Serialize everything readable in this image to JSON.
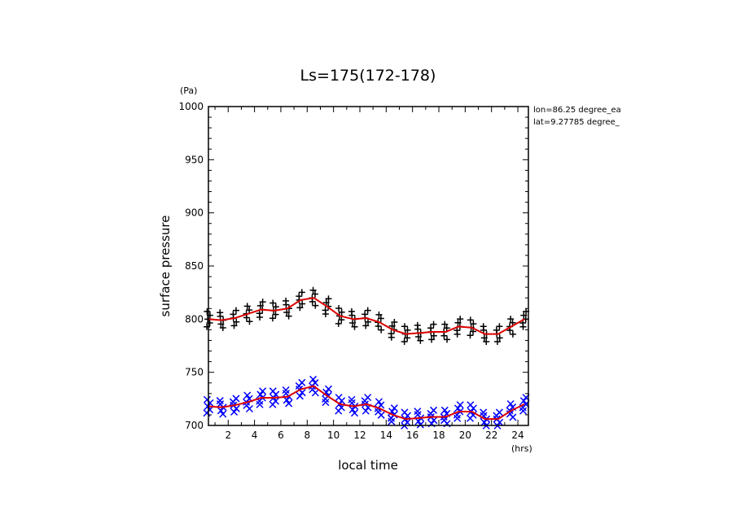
{
  "chart_data": {
    "type": "scatter",
    "title": "Ls=175(172-178)",
    "xlabel": "local time",
    "ylabel": "surface pressure",
    "x_unit": "(hrs)",
    "y_unit": "(Pa)",
    "xlim": [
      0.5,
      24.8
    ],
    "ylim": [
      700,
      1000
    ],
    "xticks": [
      2,
      4,
      6,
      8,
      10,
      12,
      14,
      16,
      18,
      20,
      22,
      24
    ],
    "yticks": [
      700,
      750,
      800,
      850,
      900,
      950,
      1000
    ],
    "annotations": [
      "lon=86.25 degree_ea",
      "lat=9.27785 degree_"
    ],
    "colors": {
      "upper_markers": "#000000",
      "lower_markers": "#0000ff",
      "mean_line": "#dd0000"
    },
    "series": [
      {
        "marker": "plus",
        "color": "#000000",
        "x": [
          0.5,
          1.5,
          2.5,
          3.5,
          4.5,
          5.5,
          6.5,
          7.5,
          8.5,
          9.5,
          10.5,
          11.5,
          12.5,
          13.5,
          14.5,
          15.5,
          16.5,
          17.5,
          18.5,
          19.5,
          20.5,
          21.5,
          22.5,
          23.5,
          24.5
        ],
        "mean": [
          800,
          799,
          801,
          805,
          809,
          808,
          810,
          818,
          820,
          812,
          803,
          800,
          801,
          797,
          790,
          786,
          787,
          788,
          788,
          793,
          792,
          786,
          786,
          793,
          800
        ],
        "spread": 8
      },
      {
        "marker": "x",
        "color": "#0000ff",
        "x": [
          0.5,
          1.5,
          2.5,
          3.5,
          4.5,
          5.5,
          6.5,
          7.5,
          8.5,
          9.5,
          10.5,
          11.5,
          12.5,
          13.5,
          14.5,
          15.5,
          16.5,
          17.5,
          18.5,
          19.5,
          20.5,
          21.5,
          22.5,
          23.5,
          24.5
        ],
        "mean": [
          718,
          717,
          719,
          722,
          726,
          726,
          727,
          734,
          737,
          728,
          720,
          718,
          720,
          716,
          710,
          706,
          707,
          708,
          708,
          713,
          713,
          706,
          706,
          714,
          720
        ],
        "spread": 7
      }
    ]
  }
}
